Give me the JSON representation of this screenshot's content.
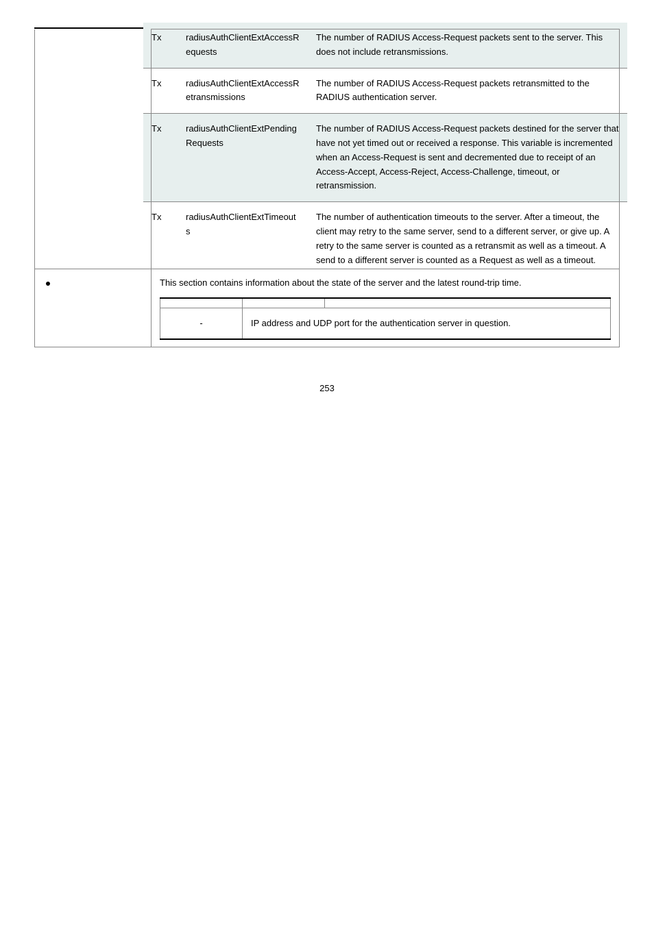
{
  "rows": [
    {
      "shade": true,
      "dir": "Tx",
      "name": "radiusAuthClientExtAccessRequests",
      "desc": "The number of RADIUS Access-Request packets sent to the server. This does not include retransmissions."
    },
    {
      "shade": false,
      "dir": "Tx",
      "name": "radiusAuthClientExtAccessRetransmissions",
      "desc": "The number of RADIUS Access-Request packets retransmitted to the RADIUS authentication server."
    },
    {
      "shade": true,
      "dir": "Tx",
      "name": "radiusAuthClientExtPendingRequests",
      "desc": "The number of RADIUS Access-Request packets destined for the server that have not yet timed out or received a response. This variable is incremented when an Access-Request is sent and decremented due to receipt of an Access-Accept, Access-Reject, Access-Challenge, timeout, or retransmission."
    },
    {
      "shade": false,
      "dir": "Tx",
      "name": "radiusAuthClientExtTimeouts",
      "desc": "The number of authentication timeouts to the server. After a timeout, the client may retry to the same server, send to a different server, or give up. A retry to the same server is counted as a retransmit as well as a timeout. A send to a different server is counted as a Request as well as a timeout."
    }
  ],
  "section2_intro": "This section contains information about the state of the server and the latest round-trip time.",
  "section2_name_col": "-",
  "section2_desc": "IP address and UDP port for the authentication server in question.",
  "page_number": "253"
}
